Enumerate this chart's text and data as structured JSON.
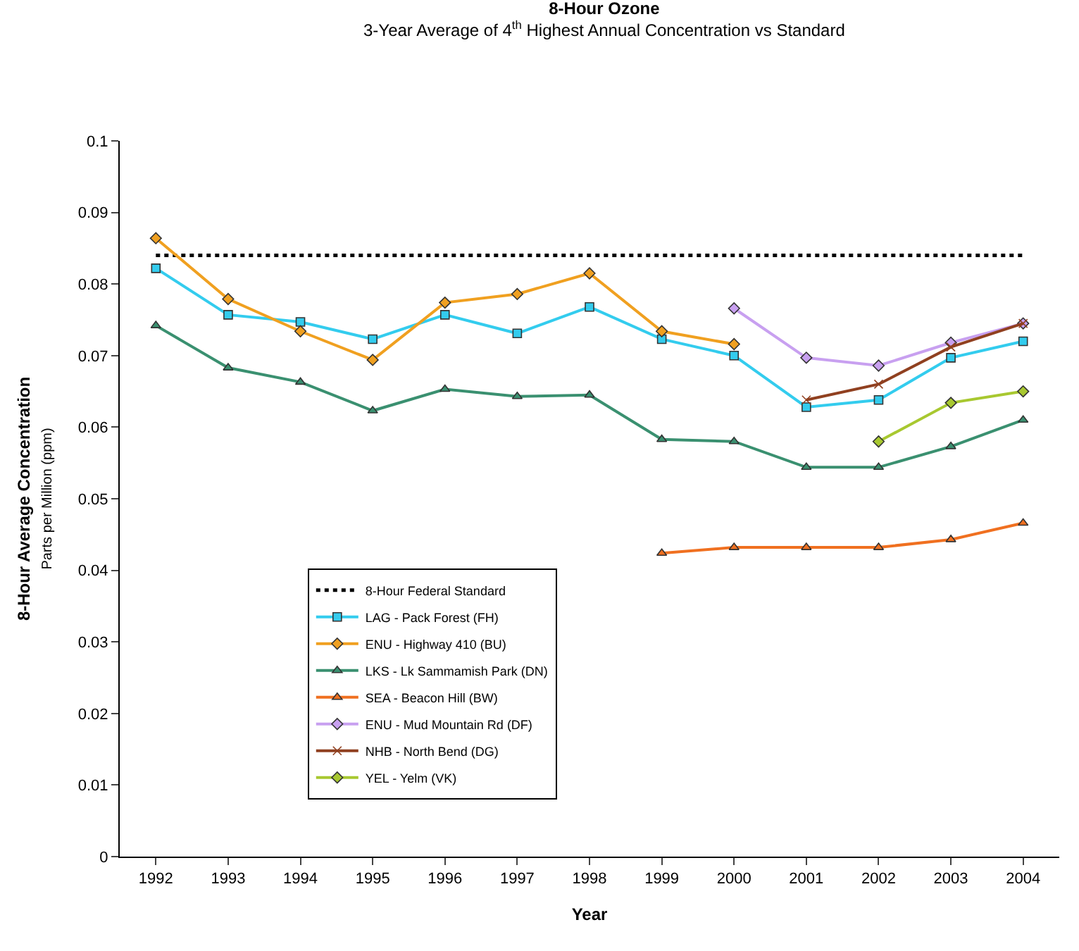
{
  "chart_data": {
    "type": "line",
    "title": "8-Hour Ozone",
    "subtitle": "3-Year Average of 4$^{th}$ Highest Annual Concentration vs Standard",
    "xlabel": "Year",
    "ylabel": "8-Hour Average Concentration\nParts per Million (ppm)",
    "categories": [
      "1992",
      "1993",
      "1994",
      "1995",
      "1996",
      "1997",
      "1998",
      "1999",
      "2000",
      "2001",
      "2002",
      "2003",
      "2004"
    ],
    "series": [
      {
        "name": "LAG - Pack Forest (FH)",
        "color": "#33ccee",
        "marker": "square",
        "values": [
          0.0822,
          0.0757,
          0.0747,
          0.0723,
          0.0757,
          0.0731,
          0.0768,
          0.0723,
          0.07,
          0.0628,
          0.0638,
          0.0697,
          0.072
        ]
      },
      {
        "name": "ENU - Highway 410 (BU)",
        "color": "#f0a020",
        "marker": "diamond",
        "values": [
          0.0864,
          0.0779,
          0.0734,
          0.0694,
          0.0774,
          0.0786,
          0.0815,
          0.0734,
          0.0716,
          null,
          null,
          null,
          null
        ]
      },
      {
        "name": "LKS - Lk Sammamish Park (DN)",
        "color": "#3a9070",
        "marker": "triangle",
        "values": [
          0.0742,
          0.0683,
          0.0663,
          0.0623,
          0.0653,
          0.0643,
          0.0645,
          0.0583,
          0.058,
          0.0544,
          0.0544,
          0.0573,
          0.061
        ]
      },
      {
        "name": "SEA - Beacon Hill (BW)",
        "color": "#f07020",
        "marker": "triangle",
        "values": [
          null,
          null,
          null,
          null,
          null,
          null,
          null,
          0.0424,
          0.0432,
          0.0432,
          0.0432,
          0.0443,
          0.0466
        ]
      },
      {
        "name": "ENU - Mud Mountain Rd (DF)",
        "color": "#c8a0f0",
        "marker": "diamond",
        "values": [
          null,
          null,
          null,
          null,
          null,
          null,
          null,
          null,
          0.0766,
          0.0697,
          0.0686,
          0.0718,
          0.0745
        ]
      },
      {
        "name": "NHB - North Bend (DG)",
        "color": "#904020",
        "marker": "cross",
        "values": [
          null,
          null,
          null,
          null,
          null,
          null,
          null,
          null,
          null,
          0.0638,
          0.066,
          0.0712,
          0.0745
        ]
      },
      {
        "name": "YEL - Yelm (VK)",
        "color": "#a8c830",
        "marker": "diamond",
        "values": [
          null,
          null,
          null,
          null,
          null,
          null,
          null,
          null,
          null,
          null,
          0.058,
          0.0634,
          0.065
        ]
      }
    ],
    "ref_lines": [
      {
        "axis": "y",
        "value": 0.084,
        "label": "8-Hour Federal Standard",
        "color": "#000000",
        "line_style": "dotted"
      }
    ],
    "ylim": [
      0,
      0.1
    ],
    "yticks": [
      0,
      0.01,
      0.02,
      0.03,
      0.04,
      0.05,
      0.06,
      0.07,
      0.08,
      0.09,
      0.1
    ],
    "legend": "bottom left",
    "line_style": "solid"
  }
}
